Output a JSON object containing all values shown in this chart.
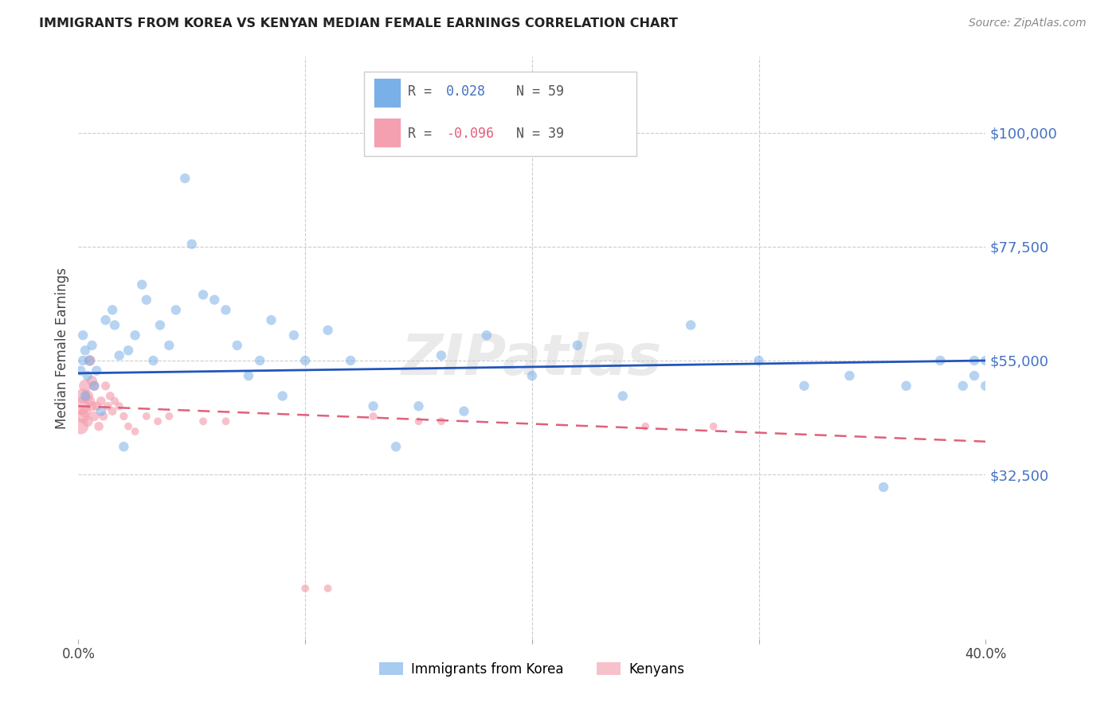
{
  "title": "IMMIGRANTS FROM KOREA VS KENYAN MEDIAN FEMALE EARNINGS CORRELATION CHART",
  "source": "Source: ZipAtlas.com",
  "ylabel": "Median Female Earnings",
  "xlim": [
    0.0,
    0.4
  ],
  "ylim": [
    0,
    115000
  ],
  "yticks": [
    32500,
    55000,
    77500,
    100000
  ],
  "ytick_labels": [
    "$32,500",
    "$55,000",
    "$77,500",
    "$100,000"
  ],
  "xtick_positions": [
    0.0,
    0.1,
    0.2,
    0.3,
    0.4
  ],
  "xtick_labels": [
    "0.0%",
    "",
    "",
    "",
    "40.0%"
  ],
  "grid_color": "#cccccc",
  "background_color": "#ffffff",
  "watermark": "ZIPatlas",
  "korea_color": "#7ab0e8",
  "kenya_color": "#f4a0b0",
  "korea_line_color": "#2255bb",
  "kenya_line_color": "#e0607a",
  "korea_scatter_x": [
    0.001,
    0.002,
    0.002,
    0.003,
    0.003,
    0.004,
    0.005,
    0.006,
    0.007,
    0.008,
    0.01,
    0.012,
    0.015,
    0.016,
    0.018,
    0.02,
    0.022,
    0.025,
    0.028,
    0.03,
    0.033,
    0.036,
    0.04,
    0.043,
    0.047,
    0.05,
    0.055,
    0.06,
    0.065,
    0.07,
    0.075,
    0.08,
    0.085,
    0.09,
    0.095,
    0.1,
    0.11,
    0.12,
    0.13,
    0.14,
    0.15,
    0.16,
    0.17,
    0.18,
    0.2,
    0.22,
    0.24,
    0.27,
    0.3,
    0.32,
    0.34,
    0.355,
    0.365,
    0.38,
    0.39,
    0.395,
    0.395,
    0.4,
    0.4
  ],
  "korea_scatter_y": [
    53000,
    55000,
    60000,
    48000,
    57000,
    52000,
    55000,
    58000,
    50000,
    53000,
    45000,
    63000,
    65000,
    62000,
    56000,
    38000,
    57000,
    60000,
    70000,
    67000,
    55000,
    62000,
    58000,
    65000,
    91000,
    78000,
    68000,
    67000,
    65000,
    58000,
    52000,
    55000,
    63000,
    48000,
    60000,
    55000,
    61000,
    55000,
    46000,
    38000,
    46000,
    56000,
    45000,
    60000,
    52000,
    58000,
    48000,
    62000,
    55000,
    50000,
    52000,
    30000,
    50000,
    55000,
    50000,
    52000,
    55000,
    50000,
    55000
  ],
  "korea_scatter_size": [
    80,
    80,
    80,
    80,
    80,
    80,
    80,
    80,
    80,
    80,
    80,
    80,
    80,
    80,
    80,
    80,
    80,
    80,
    80,
    80,
    80,
    80,
    80,
    80,
    80,
    80,
    80,
    80,
    80,
    80,
    80,
    80,
    80,
    80,
    80,
    80,
    80,
    80,
    80,
    80,
    80,
    80,
    80,
    80,
    80,
    80,
    80,
    80,
    80,
    80,
    80,
    80,
    80,
    80,
    80,
    80,
    80,
    80,
    80
  ],
  "kenya_scatter_x": [
    0.001,
    0.001,
    0.002,
    0.002,
    0.003,
    0.003,
    0.004,
    0.004,
    0.005,
    0.005,
    0.006,
    0.006,
    0.007,
    0.007,
    0.008,
    0.009,
    0.01,
    0.011,
    0.012,
    0.013,
    0.014,
    0.015,
    0.016,
    0.018,
    0.02,
    0.022,
    0.025,
    0.03,
    0.035,
    0.04,
    0.055,
    0.065,
    0.1,
    0.11,
    0.13,
    0.15,
    0.16,
    0.25,
    0.28
  ],
  "kenya_scatter_y": [
    46000,
    42000,
    48000,
    44000,
    50000,
    45000,
    48000,
    43000,
    55000,
    47000,
    51000,
    46000,
    50000,
    44000,
    46000,
    42000,
    47000,
    44000,
    50000,
    46000,
    48000,
    45000,
    47000,
    46000,
    44000,
    42000,
    41000,
    44000,
    43000,
    44000,
    43000,
    43000,
    10000,
    10000,
    44000,
    43000,
    43000,
    42000,
    42000
  ],
  "kenya_scatter_size": [
    250,
    200,
    180,
    150,
    130,
    120,
    110,
    100,
    100,
    90,
    90,
    80,
    80,
    80,
    70,
    70,
    70,
    65,
    65,
    60,
    60,
    60,
    55,
    55,
    55,
    50,
    50,
    50,
    50,
    50,
    50,
    50,
    50,
    50,
    50,
    50,
    50,
    50,
    50
  ],
  "korea_line_x0": 0.0,
  "korea_line_y0": 52500,
  "korea_line_x1": 0.4,
  "korea_line_y1": 55000,
  "kenya_line_x0": 0.0,
  "kenya_line_y0": 46000,
  "kenya_line_x1": 0.4,
  "kenya_line_y1": 39000
}
